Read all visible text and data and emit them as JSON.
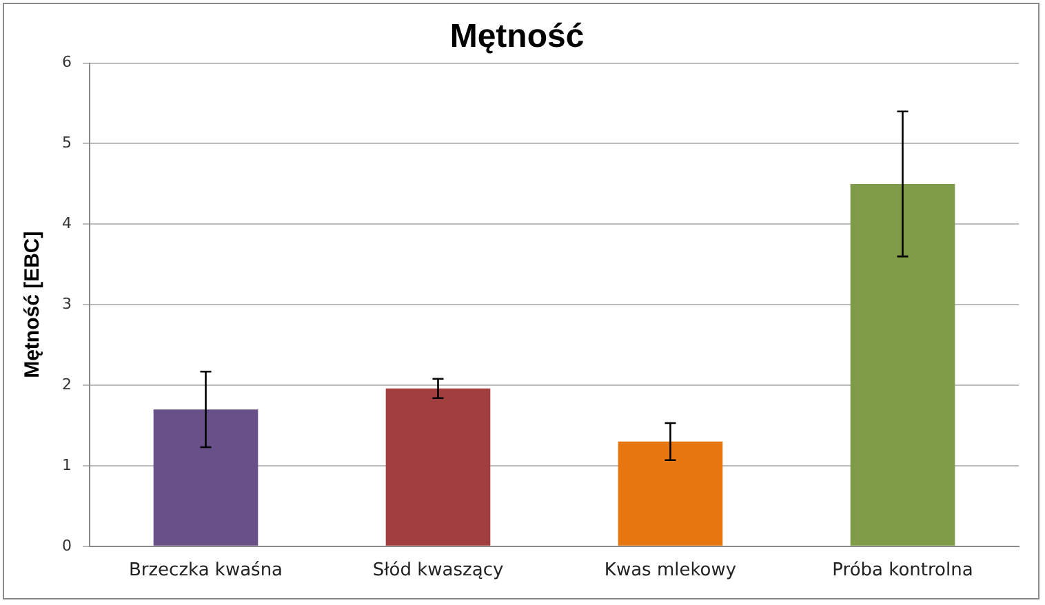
{
  "chart_data": {
    "type": "bar",
    "title": "Mętność",
    "ylabel": "Mętność [EBC]",
    "categories": [
      "Brzeczka kwaśna",
      "Słód kwaszący",
      "Kwas mlekowy",
      "Próba kontrolna"
    ],
    "values": [
      1.7,
      1.96,
      1.3,
      4.5
    ],
    "colors": [
      "#675188",
      "#a13f3e",
      "#e7760f",
      "#7f9b47"
    ],
    "errors": [
      0.47,
      0.12,
      0.23,
      0.9
    ],
    "ylim": [
      0,
      6
    ],
    "yticks": [
      0,
      1,
      2,
      3,
      4,
      5,
      6
    ],
    "grid": "y",
    "legend": false
  }
}
